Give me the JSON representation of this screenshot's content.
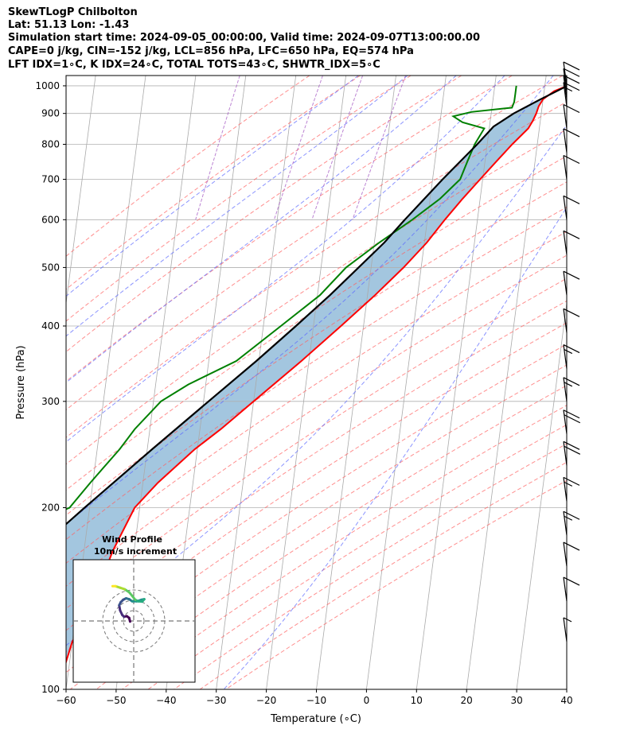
{
  "header": {
    "line1": "SkewTLogP Chilbolton",
    "line2": "Lat: 51.13   Lon: -1.43",
    "line3": "Simulation start time: 2024-09-05_00:00:00, Valid time: 2024-09-07T13:00:00.00",
    "line4": "CAPE=0 j/kg, CIN=-152 j/kg, LCL=856 hPa, LFC=650 hPa, EQ=574 hPa",
    "line5": "LFT IDX=1∘C, K IDX=24∘C, TOTAL TOTS=43∘C, SHWTR_IDX=5∘C"
  },
  "chart_data": {
    "type": "skewt",
    "xlabel": "Temperature (∘C)",
    "ylabel": "Pressure (hPa)",
    "xlim": [
      -60,
      40
    ],
    "ylim": [
      1040,
      100
    ],
    "x_ticks": [
      -60,
      -50,
      -40,
      -30,
      -20,
      -10,
      0,
      10,
      20,
      30,
      40
    ],
    "x_tick_labels": [
      "−60",
      "−50",
      "−40",
      "−30",
      "−20",
      "−10",
      "0",
      "10",
      "20",
      "30",
      "40"
    ],
    "y_ticks": [
      1000,
      900,
      800,
      700,
      600,
      500,
      400,
      300,
      200,
      100
    ],
    "y_tick_labels": [
      "1000",
      "900",
      "800",
      "700",
      "600",
      "500",
      "400",
      "300",
      "200",
      "100"
    ],
    "colors": {
      "temperature": "#ff0000",
      "dewpoint": "#008000",
      "parcel": "#000000",
      "shade": "#a3c6df",
      "dry_adiabat": "#ff6060",
      "moist_adiabat": "#5a66ff",
      "mixing_ratio": "#a050c0",
      "isotherm": "#aaaaaa",
      "grid": "#b0b0b0"
    },
    "series": [
      {
        "name": "Temperature",
        "p": [
          1000,
          980,
          950,
          925,
          900,
          875,
          850,
          800,
          750,
          700,
          650,
          600,
          550,
          500,
          450,
          400,
          350,
          300,
          270,
          250,
          220,
          200,
          170,
          150,
          130,
          120,
          110,
          100
        ],
        "t": [
          24.5,
          22,
          20,
          19.3,
          19.0,
          18.5,
          17.8,
          15.0,
          12.3,
          9.5,
          6.5,
          3.5,
          0.5,
          -3.5,
          -8.5,
          -14.5,
          -21.5,
          -30.0,
          -35.8,
          -40.5,
          -47.0,
          -51.0,
          -54.2,
          -56.0,
          -57.8,
          -60.0,
          -60.8,
          -61.0
        ]
      },
      {
        "name": "Dewpoint",
        "p": [
          1000,
          970,
          940,
          920,
          905,
          890,
          870,
          850,
          800,
          750,
          700,
          650,
          600,
          550,
          500,
          450,
          400,
          350,
          320,
          300,
          270,
          250,
          220,
          200,
          180,
          170,
          150,
          130,
          110,
          100
        ],
        "t": [
          14.3,
          14.3,
          14.3,
          14.0,
          6.0,
          2.5,
          4.5,
          9.0,
          7.5,
          6.5,
          5.5,
          2.0,
          -3.0,
          -9.0,
          -15.0,
          -19.5,
          -26.5,
          -34.5,
          -43.5,
          -48.5,
          -53.0,
          -55.5,
          -60.5,
          -64.0,
          -76.0,
          -77.5,
          -78.0,
          -78.5,
          -81.0,
          -82.0
        ]
      },
      {
        "name": "Parcel",
        "p": [
          1000,
          950,
          900,
          856,
          800,
          700,
          600,
          550,
          500,
          450,
          400,
          350,
          300,
          250,
          200,
          170,
          150,
          130,
          110,
          100
        ],
        "t": [
          24.5,
          19.5,
          14.5,
          10.8,
          8.0,
          2.0,
          -4.5,
          -8.0,
          -12.5,
          -17.5,
          -23.5,
          -30.5,
          -39.0,
          -49.0,
          -61.0,
          -69.5,
          -76.0,
          -82.5,
          -90.0,
          -94.0
        ]
      }
    ],
    "wind_barbs": [
      {
        "p": 1000,
        "flags": 0,
        "full": 1,
        "half": 0
      },
      {
        "p": 975,
        "flags": 0,
        "full": 1,
        "half": 0
      },
      {
        "p": 950,
        "flags": 0,
        "full": 1,
        "half": 0
      },
      {
        "p": 925,
        "flags": 0,
        "full": 1,
        "half": 1
      },
      {
        "p": 850,
        "flags": 0,
        "full": 1,
        "half": 0
      },
      {
        "p": 775,
        "flags": 0,
        "full": 1,
        "half": 0
      },
      {
        "p": 700,
        "flags": 0,
        "full": 1,
        "half": 0
      },
      {
        "p": 600,
        "flags": 0,
        "full": 1,
        "half": 0
      },
      {
        "p": 525,
        "flags": 0,
        "full": 1,
        "half": 0
      },
      {
        "p": 450,
        "flags": 0,
        "full": 1,
        "half": 0
      },
      {
        "p": 390,
        "flags": 0,
        "full": 1,
        "half": 0
      },
      {
        "p": 340,
        "flags": 0,
        "full": 1,
        "half": 1
      },
      {
        "p": 300,
        "flags": 0,
        "full": 1,
        "half": 1
      },
      {
        "p": 265,
        "flags": 0,
        "full": 2,
        "half": 0
      },
      {
        "p": 235,
        "flags": 0,
        "full": 2,
        "half": 0
      },
      {
        "p": 205,
        "flags": 0,
        "full": 1,
        "half": 1
      },
      {
        "p": 180,
        "flags": 0,
        "full": 1,
        "half": 1
      },
      {
        "p": 160,
        "flags": 0,
        "full": 1,
        "half": 0
      },
      {
        "p": 140,
        "flags": 0,
        "full": 1,
        "half": 0
      },
      {
        "p": 120,
        "flags": 0,
        "full": 0,
        "half": 1
      }
    ],
    "hodograph": {
      "title": "Wind Profile",
      "subtitle": "10m/s increment",
      "u": [
        -1.2,
        -1.5,
        -2.3,
        -3.2,
        -3.8,
        -4.5,
        -4.8,
        -4.3,
        -3.5,
        -2.5,
        -1.5,
        -0.5,
        1.0,
        2.5,
        3.5,
        2.8,
        1.5,
        0.5,
        -0.5,
        -1.5,
        -3.0,
        -4.5,
        -6.0,
        -7.0
      ],
      "v": [
        -0.2,
        1.0,
        1.6,
        1.4,
        2.0,
        3.5,
        5.2,
        6.2,
        7.0,
        7.5,
        7.2,
        6.5,
        6.5,
        7.0,
        7.2,
        6.4,
        6.5,
        7.0,
        8.3,
        9.5,
        10.5,
        11.0,
        11.5,
        11.5
      ]
    }
  }
}
